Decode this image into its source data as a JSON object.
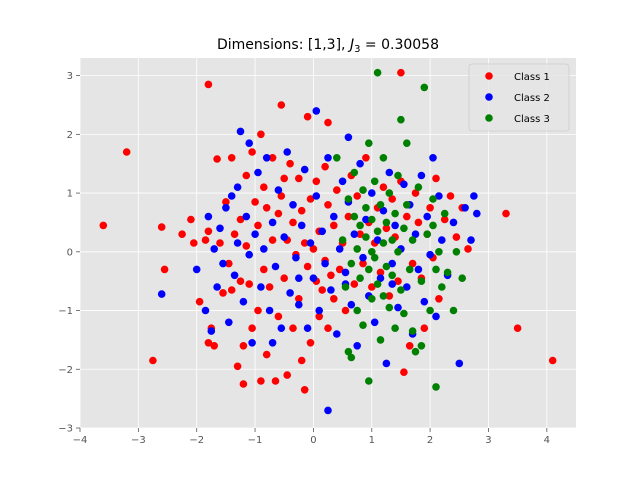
{
  "chart_data": {
    "type": "scatter",
    "title": "Dimensions: [1,3], J₃ = 0.30058",
    "title_parts": {
      "prefix": "Dimensions: [1,3], ",
      "var": "J",
      "sub": "3",
      "suffix": " = 0.30058"
    },
    "xlabel": "",
    "ylabel": "",
    "xlim": [
      -4.0,
      4.5
    ],
    "ylim": [
      -3.0,
      3.3
    ],
    "xticks": [
      -4,
      -3,
      -2,
      -1,
      0,
      1,
      2,
      3,
      4
    ],
    "yticks": [
      -3,
      -2,
      -1,
      0,
      1,
      2,
      3
    ],
    "xtick_labels": [
      "−4",
      "−3",
      "−2",
      "−1",
      "0",
      "1",
      "2",
      "3",
      "4"
    ],
    "ytick_labels": [
      "−3",
      "−2",
      "−1",
      "0",
      "1",
      "2",
      "3"
    ],
    "grid": true,
    "background": "#e5e5e5",
    "grid_color": "#ffffff",
    "legend_position": "top-right",
    "series": [
      {
        "name": "Class 1",
        "color": "#ff0000",
        "points": [
          [
            -3.6,
            0.45
          ],
          [
            -3.2,
            1.7
          ],
          [
            -2.75,
            -1.85
          ],
          [
            -2.6,
            0.42
          ],
          [
            -2.55,
            -0.3
          ],
          [
            -2.25,
            0.3
          ],
          [
            -2.1,
            0.55
          ],
          [
            -2.05,
            0.15
          ],
          [
            -1.95,
            -0.85
          ],
          [
            -1.85,
            0.2
          ],
          [
            -1.8,
            2.85
          ],
          [
            -1.8,
            0.35
          ],
          [
            -1.8,
            -1.55
          ],
          [
            -1.75,
            -1.3
          ],
          [
            -1.7,
            -1.6
          ],
          [
            -1.65,
            1.58
          ],
          [
            -1.6,
            0.15
          ],
          [
            -1.55,
            -0.7
          ],
          [
            -1.5,
            0.85
          ],
          [
            -1.45,
            -0.2
          ],
          [
            -1.4,
            1.6
          ],
          [
            -1.4,
            -0.65
          ],
          [
            -1.35,
            0.3
          ],
          [
            -1.3,
            -1.95
          ],
          [
            -1.25,
            -0.5
          ],
          [
            -1.25,
            0.55
          ],
          [
            -1.2,
            -2.25
          ],
          [
            -1.2,
            -1.6
          ],
          [
            -1.15,
            1.3
          ],
          [
            -1.15,
            0.1
          ],
          [
            -1.1,
            -0.55
          ],
          [
            -1.05,
            1.7
          ],
          [
            -1.05,
            -1.3
          ],
          [
            -1.0,
            0.85
          ],
          [
            -0.95,
            -1.0
          ],
          [
            -0.95,
            0.45
          ],
          [
            -0.9,
            -2.2
          ],
          [
            -0.9,
            2.0
          ],
          [
            -0.85,
            1.1
          ],
          [
            -0.85,
            -0.3
          ],
          [
            -0.8,
            0.75
          ],
          [
            -0.8,
            -1.75
          ],
          [
            -0.75,
            -0.6
          ],
          [
            -0.7,
            0.2
          ],
          [
            -0.7,
            1.6
          ],
          [
            -0.65,
            -2.2
          ],
          [
            -0.6,
            0.65
          ],
          [
            -0.6,
            -1.1
          ],
          [
            -0.55,
            2.5
          ],
          [
            -0.55,
            0.95
          ],
          [
            -0.5,
            -0.45
          ],
          [
            -0.5,
            1.25
          ],
          [
            -0.45,
            -2.1
          ],
          [
            -0.45,
            0.2
          ],
          [
            -0.4,
            1.5
          ],
          [
            -0.35,
            -1.3
          ],
          [
            -0.35,
            0.5
          ],
          [
            -0.3,
            -0.05
          ],
          [
            -0.25,
            1.25
          ],
          [
            -0.25,
            -0.8
          ],
          [
            -0.2,
            0.7
          ],
          [
            -0.2,
            -1.85
          ],
          [
            -0.15,
            -2.35
          ],
          [
            -0.15,
            0.15
          ],
          [
            -0.1,
            2.3
          ],
          [
            -0.1,
            -0.25
          ],
          [
            -0.05,
            0.9
          ],
          [
            -0.05,
            -1.55
          ],
          [
            0.0,
            0.05
          ],
          [
            0.05,
            -0.5
          ],
          [
            0.05,
            1.2
          ],
          [
            0.1,
            -1.1
          ],
          [
            0.1,
            0.35
          ],
          [
            0.15,
            -0.65
          ],
          [
            0.2,
            1.45
          ],
          [
            0.2,
            -0.15
          ],
          [
            0.25,
            0.8
          ],
          [
            0.25,
            -1.3
          ],
          [
            0.25,
            2.2
          ],
          [
            0.3,
            -0.4
          ],
          [
            0.35,
            0.45
          ],
          [
            0.35,
            -0.8
          ],
          [
            0.4,
            1.05
          ],
          [
            0.45,
            -0.3
          ],
          [
            0.5,
            0.15
          ],
          [
            0.55,
            -1.0
          ],
          [
            0.6,
            0.6
          ],
          [
            0.65,
            1.3
          ],
          [
            0.7,
            -0.55
          ],
          [
            0.75,
            0.95
          ],
          [
            0.8,
            0.3
          ],
          [
            0.85,
            -0.2
          ],
          [
            0.9,
            1.6
          ],
          [
            0.95,
            0.5
          ],
          [
            1.0,
            -0.6
          ],
          [
            1.05,
            0.15
          ],
          [
            1.1,
            0.75
          ],
          [
            1.15,
            -0.35
          ],
          [
            1.2,
            1.1
          ],
          [
            1.25,
            0.4
          ],
          [
            1.3,
            -0.75
          ],
          [
            1.35,
            0.9
          ],
          [
            1.4,
            0.25
          ],
          [
            1.45,
            -0.5
          ],
          [
            1.5,
            3.05
          ],
          [
            1.5,
            1.2
          ],
          [
            1.55,
            -2.05
          ],
          [
            1.6,
            0.6
          ],
          [
            1.65,
            -1.6
          ],
          [
            1.7,
            -0.2
          ],
          [
            1.75,
            1.0
          ],
          [
            1.8,
            0.5
          ],
          [
            1.85,
            -0.45
          ],
          [
            1.9,
            -1.3
          ],
          [
            1.95,
            0.3
          ],
          [
            2.0,
            0.75
          ],
          [
            2.05,
            -0.1
          ],
          [
            2.1,
            1.25
          ],
          [
            2.15,
            -0.8
          ],
          [
            2.25,
            0.55
          ],
          [
            2.35,
            0.95
          ],
          [
            2.45,
            0.25
          ],
          [
            2.55,
            0.75
          ],
          [
            2.65,
            0.05
          ],
          [
            3.3,
            0.65
          ],
          [
            3.5,
            -1.3
          ],
          [
            4.1,
            -1.85
          ]
        ]
      },
      {
        "name": "Class 2",
        "color": "#0000ff",
        "points": [
          [
            -2.6,
            -0.72
          ],
          [
            -2.0,
            -0.3
          ],
          [
            -1.85,
            -1.0
          ],
          [
            -1.8,
            0.6
          ],
          [
            -1.75,
            -1.35
          ],
          [
            -1.7,
            0.05
          ],
          [
            -1.65,
            -0.6
          ],
          [
            -1.6,
            0.4
          ],
          [
            -1.55,
            -0.2
          ],
          [
            -1.5,
            0.75
          ],
          [
            -1.45,
            -1.2
          ],
          [
            -1.4,
            0.95
          ],
          [
            -1.35,
            -0.4
          ],
          [
            -1.3,
            0.15
          ],
          [
            -1.3,
            1.1
          ],
          [
            -1.25,
            2.05
          ],
          [
            -1.2,
            -0.85
          ],
          [
            -1.15,
            0.6
          ],
          [
            -1.1,
            -0.05
          ],
          [
            -1.1,
            1.85
          ],
          [
            -1.05,
            -1.55
          ],
          [
            -1.0,
            0.3
          ],
          [
            -0.95,
            1.35
          ],
          [
            -0.9,
            -0.6
          ],
          [
            -0.85,
            0.05
          ],
          [
            -0.8,
            1.6
          ],
          [
            -0.75,
            -1.0
          ],
          [
            -0.7,
            0.5
          ],
          [
            -0.65,
            -0.25
          ],
          [
            -0.6,
            1.05
          ],
          [
            -0.55,
            -1.3
          ],
          [
            -0.5,
            0.25
          ],
          [
            -0.45,
            1.7
          ],
          [
            -0.4,
            -0.7
          ],
          [
            -0.35,
            0.8
          ],
          [
            -0.3,
            -0.1
          ],
          [
            -0.25,
            -0.9
          ],
          [
            -0.2,
            0.45
          ],
          [
            -0.15,
            1.4
          ],
          [
            -0.1,
            -1.3
          ],
          [
            -0.05,
            0.15
          ],
          [
            0.0,
            -0.45
          ],
          [
            0.05,
            0.95
          ],
          [
            0.1,
            -1.0
          ],
          [
            0.15,
            0.35
          ],
          [
            0.2,
            -0.2
          ],
          [
            0.25,
            1.6
          ],
          [
            0.25,
            -2.7
          ],
          [
            0.3,
            -0.65
          ],
          [
            0.35,
            0.6
          ],
          [
            0.4,
            -1.4
          ],
          [
            0.45,
            0.05
          ],
          [
            0.5,
            1.2
          ],
          [
            0.55,
            -0.35
          ],
          [
            0.6,
            0.85
          ],
          [
            0.65,
            -0.9
          ],
          [
            0.7,
            0.3
          ],
          [
            0.75,
            -1.6
          ],
          [
            0.8,
            1.5
          ],
          [
            0.85,
            -0.1
          ],
          [
            0.9,
            0.55
          ],
          [
            0.95,
            -0.75
          ],
          [
            1.0,
            1.0
          ],
          [
            1.05,
            -1.2
          ],
          [
            1.1,
            0.2
          ],
          [
            1.15,
            -0.45
          ],
          [
            1.2,
            0.7
          ],
          [
            1.25,
            -1.9
          ],
          [
            1.3,
            1.35
          ],
          [
            1.35,
            -0.2
          ],
          [
            1.4,
            0.45
          ],
          [
            1.45,
            -0.95
          ],
          [
            1.5,
            0.05
          ],
          [
            1.55,
            1.15
          ],
          [
            1.6,
            -0.6
          ],
          [
            1.65,
            0.8
          ],
          [
            1.7,
            -1.4
          ],
          [
            1.75,
            0.3
          ],
          [
            1.8,
            -0.3
          ],
          [
            1.85,
            1.3
          ],
          [
            1.9,
            -0.85
          ],
          [
            1.95,
            0.6
          ],
          [
            2.0,
            -0.05
          ],
          [
            2.05,
            1.6
          ],
          [
            2.1,
            -1.1
          ],
          [
            2.15,
            0.95
          ],
          [
            2.2,
            0.2
          ],
          [
            2.3,
            -0.4
          ],
          [
            2.4,
            0.5
          ],
          [
            2.5,
            -1.9
          ],
          [
            2.6,
            0.75
          ],
          [
            2.7,
            0.2
          ],
          [
            2.75,
            0.95
          ],
          [
            2.8,
            0.65
          ],
          [
            0.05,
            2.4
          ],
          [
            -0.25,
            -0.45
          ],
          [
            0.55,
            -0.55
          ],
          [
            1.35,
            -0.55
          ],
          [
            -0.7,
            -1.55
          ],
          [
            0.6,
            1.95
          ]
        ]
      },
      {
        "name": "Class 3",
        "color": "#008000",
        "points": [
          [
            0.4,
            1.6
          ],
          [
            0.5,
            0.2
          ],
          [
            0.55,
            -0.6
          ],
          [
            0.6,
            0.9
          ],
          [
            0.6,
            -1.7
          ],
          [
            0.65,
            -0.2
          ],
          [
            0.7,
            0.6
          ],
          [
            0.7,
            1.35
          ],
          [
            0.75,
            -1.0
          ],
          [
            0.75,
            0.05
          ],
          [
            0.8,
            0.45
          ],
          [
            0.8,
            -0.45
          ],
          [
            0.85,
            1.05
          ],
          [
            0.85,
            -1.25
          ],
          [
            0.9,
            0.25
          ],
          [
            0.9,
            0.75
          ],
          [
            0.95,
            -0.3
          ],
          [
            0.95,
            1.85
          ],
          [
            1.0,
            0.0
          ],
          [
            1.0,
            0.55
          ],
          [
            1.0,
            -0.8
          ],
          [
            1.05,
            1.2
          ],
          [
            1.05,
            -0.1
          ],
          [
            1.1,
            0.35
          ],
          [
            1.1,
            3.05
          ],
          [
            1.1,
            -0.55
          ],
          [
            1.15,
            0.8
          ],
          [
            1.15,
            -1.5
          ],
          [
            1.2,
            0.15
          ],
          [
            1.2,
            1.6
          ],
          [
            1.25,
            -0.25
          ],
          [
            1.25,
            0.5
          ],
          [
            1.3,
            -0.95
          ],
          [
            1.3,
            1.0
          ],
          [
            1.35,
            0.2
          ],
          [
            1.35,
            -0.4
          ],
          [
            1.4,
            0.65
          ],
          [
            1.4,
            -1.3
          ],
          [
            1.45,
            1.3
          ],
          [
            1.45,
            0.0
          ],
          [
            1.5,
            -0.65
          ],
          [
            1.5,
            2.25
          ],
          [
            1.55,
            0.4
          ],
          [
            1.55,
            -1.05
          ],
          [
            1.6,
            1.85
          ],
          [
            1.6,
            0.8
          ],
          [
            1.65,
            -0.3
          ],
          [
            1.7,
            0.2
          ],
          [
            1.75,
            -1.7
          ],
          [
            1.8,
            1.1
          ],
          [
            1.85,
            -0.5
          ],
          [
            1.9,
            2.8
          ],
          [
            1.95,
            0.3
          ],
          [
            2.0,
            -1.0
          ],
          [
            2.05,
            0.9
          ],
          [
            2.1,
            -2.3
          ],
          [
            2.15,
            0.0
          ],
          [
            2.2,
            -0.6
          ],
          [
            2.25,
            0.65
          ],
          [
            2.3,
            -0.35
          ],
          [
            2.4,
            -1.0
          ],
          [
            2.45,
            0.0
          ],
          [
            2.55,
            -0.45
          ],
          [
            2.1,
            -0.3
          ],
          [
            1.7,
            -1.35
          ],
          [
            0.95,
            -2.2
          ],
          [
            0.65,
            -1.8
          ],
          [
            1.85,
            -1.6
          ],
          [
            2.05,
            0.45
          ],
          [
            1.2,
            -0.75
          ]
        ]
      }
    ]
  }
}
